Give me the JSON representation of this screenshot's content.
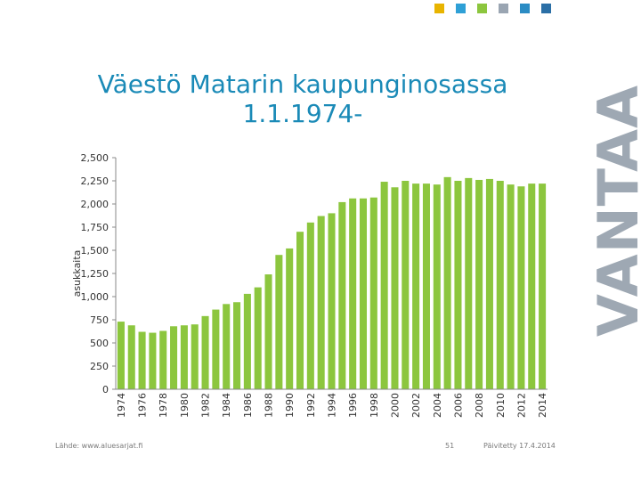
{
  "header": {
    "squares": [
      {
        "color": "#e8b400",
        "icon": "yellow-square"
      },
      {
        "color": "#2fa0d6",
        "icon": "blue-square"
      },
      {
        "color": "#8cc63e",
        "icon": "green-square"
      },
      {
        "color": "#9aa5b2",
        "icon": "grey-square"
      },
      {
        "color": "#2b8cc4",
        "icon": "blue-square"
      },
      {
        "color": "#2b6fa6",
        "icon": "darkblue-square"
      }
    ],
    "brand_text": "VANTAA",
    "brand_color": "#9ea8b3"
  },
  "title_line1": "Väestö Matarin kaupunginosassa",
  "title_line2": "1.1.1974-",
  "footer": {
    "source": "Lähde: www.aluesarjat.fi",
    "page": "51",
    "updated": "Päivitetty 17.4.2014"
  },
  "chart_data": {
    "type": "bar",
    "bar_color": "#8cc63e",
    "ylabel": "asukkaita",
    "ylim": [
      0,
      2500
    ],
    "yticks": [
      0,
      250,
      500,
      750,
      1000,
      1250,
      1500,
      1750,
      2000,
      2250,
      2500
    ],
    "ytick_labels": [
      "0",
      "250",
      "500",
      "750",
      "1,000",
      "1,250",
      "1,500",
      "1,750",
      "2,000",
      "2,250",
      "2,500"
    ],
    "grid": false,
    "categories": [
      "1974",
      "1975",
      "1976",
      "1977",
      "1978",
      "1979",
      "1980",
      "1981",
      "1982",
      "1983",
      "1984",
      "1985",
      "1986",
      "1987",
      "1988",
      "1989",
      "1990",
      "1991",
      "1992",
      "1993",
      "1994",
      "1995",
      "1996",
      "1997",
      "1998",
      "1999",
      "2000",
      "2001",
      "2002",
      "2003",
      "2004",
      "2005",
      "2006",
      "2007",
      "2008",
      "2009",
      "2010",
      "2011",
      "2012",
      "2013",
      "2014"
    ],
    "xtick_labels": [
      "1974",
      "1976",
      "1978",
      "1980",
      "1982",
      "1984",
      "1986",
      "1988",
      "1990",
      "1992",
      "1994",
      "1996",
      "1998",
      "2000",
      "2002",
      "2004",
      "2006",
      "2008",
      "2010",
      "2012",
      "2014"
    ],
    "values": [
      730,
      690,
      620,
      610,
      630,
      680,
      690,
      700,
      790,
      860,
      920,
      940,
      1030,
      1100,
      1240,
      1450,
      1520,
      1700,
      1800,
      1870,
      1900,
      2020,
      2060,
      2060,
      2070,
      2240,
      2180,
      2250,
      2220,
      2220,
      2210,
      2290,
      2250,
      2280,
      2260,
      2270,
      2250,
      2210,
      2190,
      2220,
      2220
    ]
  }
}
